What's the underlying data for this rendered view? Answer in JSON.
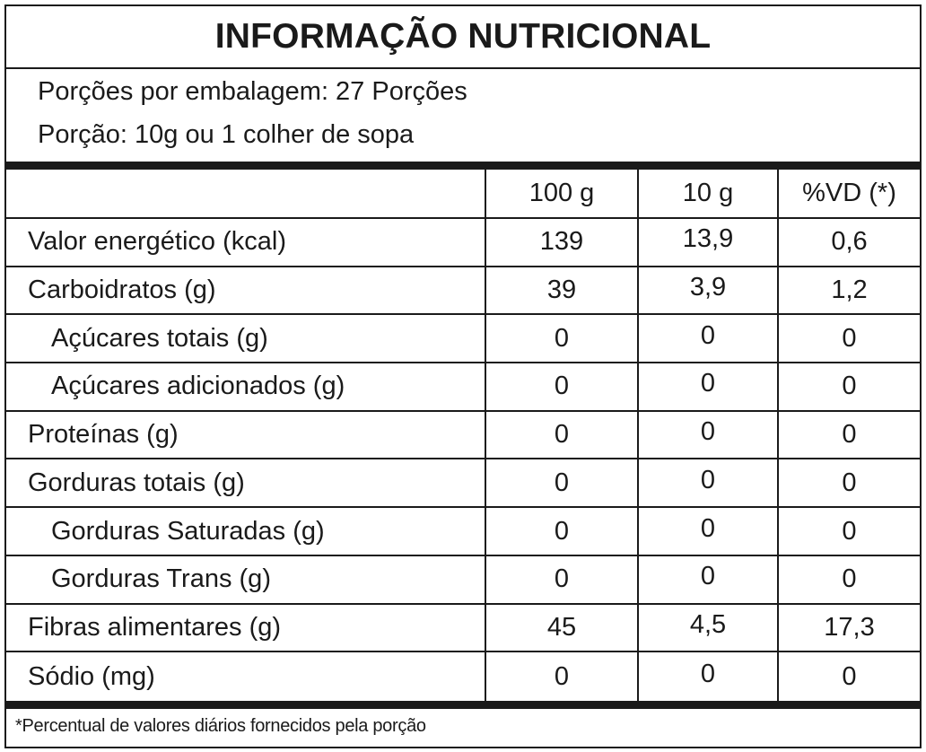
{
  "title": "INFORMAÇÃO NUTRICIONAL",
  "servings_per_package": "Porções por embalagem: 27 Porções",
  "serving_size": "Porção: 10g ou 1 colher de sopa",
  "columns": {
    "per_100g": "100 g",
    "per_10g": "10 g",
    "daily_value": "%VD (*)"
  },
  "rows": [
    {
      "name": "Valor energético (kcal)",
      "v100": "139",
      "v10": "13,9",
      "vd": "0,6",
      "indent": false
    },
    {
      "name": "Carboidratos (g)",
      "v100": "39",
      "v10": "3,9",
      "vd": "1,2",
      "indent": false
    },
    {
      "name": "Açúcares totais (g)",
      "v100": "0",
      "v10": "0",
      "vd": "0",
      "indent": true
    },
    {
      "name": "Açúcares adicionados (g)",
      "v100": "0",
      "v10": "0",
      "vd": "0",
      "indent": true
    },
    {
      "name": "Proteínas (g)",
      "v100": "0",
      "v10": "0",
      "vd": "0",
      "indent": false
    },
    {
      "name": "Gorduras totais (g)",
      "v100": "0",
      "v10": "0",
      "vd": "0",
      "indent": false
    },
    {
      "name": "Gorduras Saturadas (g)",
      "v100": "0",
      "v10": "0",
      "vd": "0",
      "indent": true
    },
    {
      "name": "Gorduras Trans (g)",
      "v100": "0",
      "v10": "0",
      "vd": "0",
      "indent": true
    },
    {
      "name": "Fibras alimentares (g)",
      "v100": "45",
      "v10": "4,5",
      "vd": "17,3",
      "indent": false
    },
    {
      "name": "Sódio (mg)",
      "v100": "0",
      "v10": "0",
      "vd": "0",
      "indent": false
    }
  ],
  "footnote": "*Percentual de valores diários fornecidos pela porção",
  "colors": {
    "ink": "#1a1a1a",
    "background": "#ffffff"
  }
}
